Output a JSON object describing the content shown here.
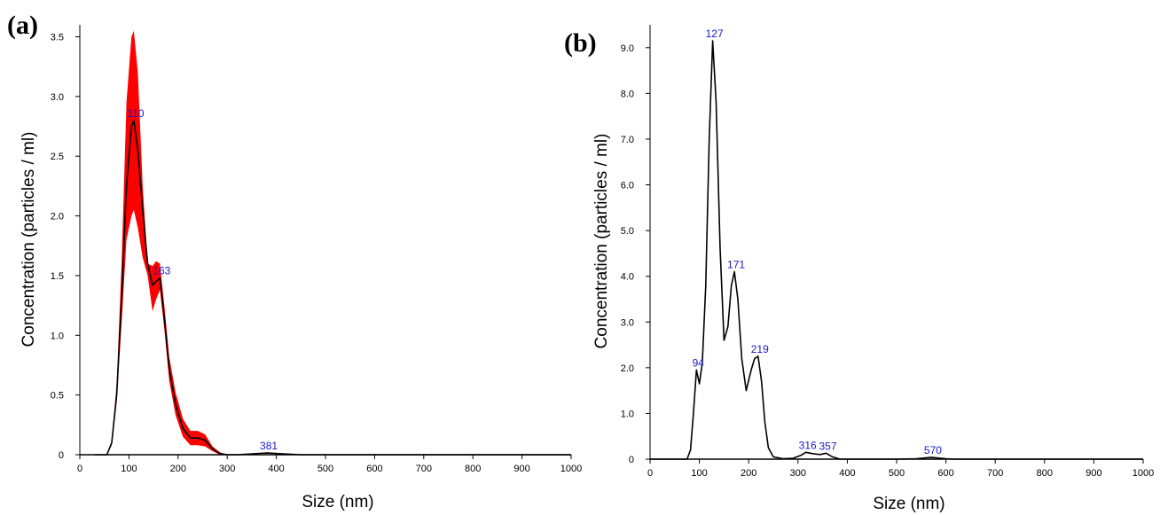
{
  "panels": [
    {
      "label": "(a)"
    },
    {
      "label": "(b)"
    }
  ],
  "chart_data": [
    {
      "type": "area",
      "xlabel": "Size (nm)",
      "ylabel": "Concentration (particles / ml)",
      "xlim": [
        0,
        1000
      ],
      "ylim": [
        0,
        3.6
      ],
      "xticks": [
        "0",
        "100",
        "200",
        "300",
        "400",
        "500",
        "600",
        "700",
        "800",
        "900",
        "1000"
      ],
      "yticks": [
        "0",
        "0.5",
        "1.0",
        "1.5",
        "2.0",
        "2.5",
        "3.0",
        "3.5"
      ],
      "ytick_values": [
        0,
        0.5,
        1.0,
        1.5,
        2.0,
        2.5,
        3.0,
        3.5
      ],
      "colors": {
        "line": "#000000",
        "band": "#ff0000",
        "label": "#1a1acc"
      },
      "mean_curve": {
        "x": [
          30,
          55,
          65,
          75,
          85,
          95,
          105,
          110,
          118,
          128,
          138,
          148,
          155,
          163,
          172,
          182,
          195,
          210,
          225,
          240,
          255,
          270,
          285,
          300,
          320,
          381,
          450,
          1000
        ],
        "y": [
          0,
          0,
          0.1,
          0.5,
          1.3,
          2.25,
          2.75,
          2.8,
          2.55,
          2.05,
          1.6,
          1.42,
          1.45,
          1.48,
          1.15,
          0.72,
          0.42,
          0.22,
          0.14,
          0.14,
          0.12,
          0.05,
          0.01,
          0.0,
          0.0,
          0.015,
          0,
          0
        ]
      },
      "error_band": {
        "upper": [
          0,
          0,
          0.12,
          0.6,
          1.6,
          2.95,
          3.5,
          3.55,
          3.2,
          2.25,
          1.6,
          1.58,
          1.62,
          1.6,
          1.25,
          0.82,
          0.52,
          0.3,
          0.2,
          0.2,
          0.17,
          0.07,
          0.02,
          0.0,
          0.0,
          0.02,
          0,
          0
        ],
        "lower": [
          0,
          0,
          0.08,
          0.45,
          1.1,
          1.8,
          2.0,
          2.05,
          1.9,
          1.65,
          1.5,
          1.2,
          1.3,
          1.38,
          1.05,
          0.62,
          0.33,
          0.15,
          0.08,
          0.08,
          0.07,
          0.03,
          0.0,
          0.0,
          0.0,
          0.01,
          0,
          0
        ]
      },
      "peak_labels": [
        {
          "text": "110",
          "x": 110,
          "y": 2.8
        },
        {
          "text": "163",
          "x": 163,
          "y": 1.48
        },
        {
          "text": "381",
          "x": 381,
          "y": 0.015
        }
      ]
    },
    {
      "type": "line",
      "xlabel": "Size (nm)",
      "ylabel": "Concentration (particles / ml)",
      "xlim": [
        0,
        1000
      ],
      "ylim": [
        0,
        9.5
      ],
      "xticks": [
        "0",
        "100",
        "200",
        "300",
        "400",
        "500",
        "600",
        "700",
        "800",
        "900",
        "1000"
      ],
      "yticks": [
        "0",
        "1.0",
        "2.0",
        "3.0",
        "4.0",
        "5.0",
        "6.0",
        "7.0",
        "8.0",
        "9.0"
      ],
      "ytick_values": [
        0,
        1,
        2,
        3,
        4,
        5,
        6,
        7,
        8,
        9
      ],
      "colors": {
        "line": "#000000",
        "label": "#1a1acc"
      },
      "curve": {
        "x": [
          0,
          75,
          82,
          88,
          94,
          100,
          106,
          113,
          120,
          127,
          134,
          142,
          150,
          158,
          165,
          171,
          178,
          186,
          195,
          205,
          212,
          219,
          226,
          233,
          240,
          250,
          270,
          290,
          305,
          316,
          330,
          345,
          357,
          370,
          385,
          400,
          500,
          540,
          570,
          600,
          620,
          1000
        ],
        "y": [
          0,
          0,
          0.2,
          1.0,
          1.95,
          1.65,
          2.1,
          3.8,
          7.0,
          9.15,
          7.8,
          4.6,
          2.6,
          2.9,
          3.8,
          4.1,
          3.5,
          2.2,
          1.5,
          1.95,
          2.2,
          2.25,
          1.7,
          0.8,
          0.25,
          0.05,
          0.01,
          0.02,
          0.08,
          0.15,
          0.12,
          0.1,
          0.13,
          0.05,
          0.0,
          0.0,
          0.0,
          0.01,
          0.04,
          0.01,
          0.0,
          0.0
        ]
      },
      "peak_labels": [
        {
          "text": "94",
          "x": 94,
          "y": 1.95
        },
        {
          "text": "127",
          "x": 127,
          "y": 9.15
        },
        {
          "text": "171",
          "x": 171,
          "y": 4.1
        },
        {
          "text": "219",
          "x": 219,
          "y": 2.25
        },
        {
          "text": "316",
          "x": 316,
          "y": 0.15
        },
        {
          "text": "357",
          "x": 357,
          "y": 0.13
        },
        {
          "text": "570",
          "x": 570,
          "y": 0.04
        }
      ]
    }
  ]
}
